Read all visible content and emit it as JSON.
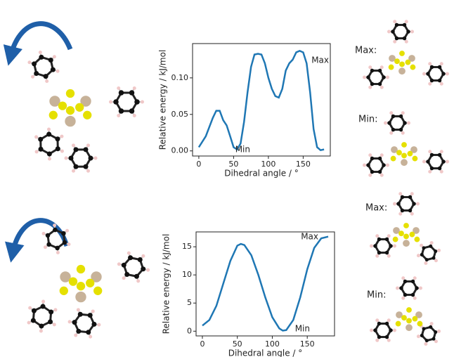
{
  "chart_data": [
    {
      "type": "line",
      "color": "#1f77b4",
      "x": [
        0,
        10,
        20,
        25,
        30,
        35,
        40,
        45,
        50,
        55,
        60,
        65,
        70,
        75,
        80,
        85,
        90,
        95,
        100,
        105,
        110,
        115,
        120,
        125,
        130,
        135,
        140,
        145,
        150,
        155,
        160,
        165,
        170,
        175,
        180
      ],
      "values": [
        0.005,
        0.02,
        0.045,
        0.055,
        0.055,
        0.042,
        0.035,
        0.02,
        0.005,
        0.002,
        0.01,
        0.04,
        0.08,
        0.115,
        0.132,
        0.133,
        0.132,
        0.12,
        0.1,
        0.085,
        0.075,
        0.073,
        0.085,
        0.11,
        0.12,
        0.125,
        0.135,
        0.137,
        0.135,
        0.12,
        0.08,
        0.03,
        0.005,
        0.001,
        0.002
      ],
      "xlim": [
        -9,
        189
      ],
      "xticks": [
        0,
        50,
        100,
        150
      ],
      "ylim": [
        -0.007,
        0.147
      ],
      "yticks": [
        {
          "value": 0,
          "label": "0.00"
        },
        {
          "value": 0.05,
          "label": "0.05"
        },
        {
          "value": 0.1,
          "label": "0.10"
        }
      ],
      "x_label": "Dihedral angle / °",
      "y_label": "Relative energy / kJ/mol",
      "annotations": [
        "Max",
        "Min"
      ],
      "side_labels": [
        "Max:",
        "Min:"
      ]
    },
    {
      "type": "line",
      "color": "#1f77b4",
      "x": [
        0,
        10,
        20,
        30,
        40,
        50,
        55,
        60,
        70,
        80,
        90,
        100,
        110,
        115,
        120,
        130,
        140,
        150,
        160,
        170,
        180
      ],
      "values": [
        1,
        2,
        4.5,
        8.5,
        12.5,
        15.2,
        15.5,
        15.3,
        13.5,
        10,
        6,
        2.5,
        0.5,
        0.1,
        0.2,
        2,
        6,
        11,
        14.8,
        16.5,
        16.8
      ],
      "xlim": [
        -9,
        189
      ],
      "xticks": [
        0,
        50,
        100,
        150
      ],
      "ylim": [
        -0.84,
        17.64
      ],
      "yticks": [
        0,
        5,
        10,
        15
      ],
      "x_label": "Dihedral angle / °",
      "y_label": "Relative energy / kJ/mol",
      "annotations": [
        "Max",
        "Min"
      ],
      "side_labels": [
        "Max:",
        "Min:"
      ]
    }
  ]
}
